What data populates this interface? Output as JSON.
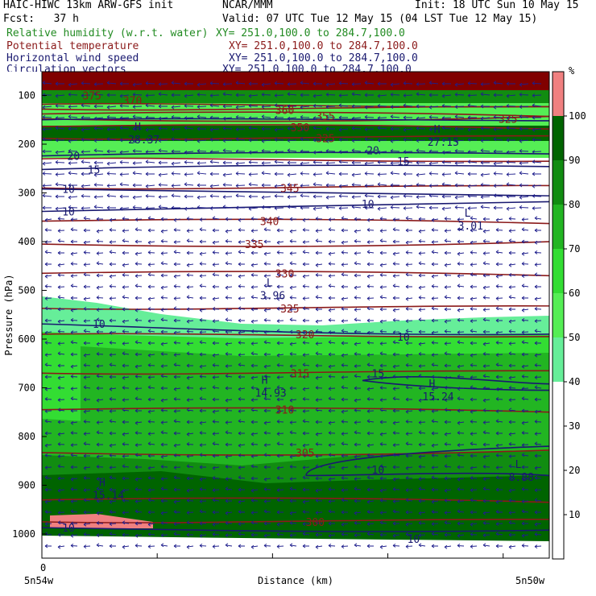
{
  "header": {
    "title_left": "HAIC-HIWC 13km ARW-GFS init",
    "org": "NCAR/MMM",
    "init": "Init: 18 UTC Sun 10 May 15",
    "fcst": "Fcst:   37 h",
    "valid": "Valid: 07 UTC Tue 12 May 15 (04 LST Tue 12 May 15)"
  },
  "fields": [
    {
      "name": "Relative humidity (w.r.t. water)",
      "xy": "XY= 251.0,100.0 to 284.7,100.0",
      "color": "#228b22"
    },
    {
      "name": "Potential temperature",
      "xy": "XY= 251.0,100.0 to 284.7,100.0",
      "color": "#8b1a1a"
    },
    {
      "name": "Horizontal wind speed",
      "xy": "XY= 251.0,100.0 to 284.7,100.0",
      "color": "#191970"
    },
    {
      "name": "Circulation vectors",
      "xy": "XY= 251.0,100.0 to 284.7,100.0",
      "color": "#191970"
    }
  ],
  "colorbar": {
    "unit": "%",
    "ticks": [
      "100",
      "90",
      "80",
      "70",
      "60",
      "50",
      "40",
      "30",
      "20",
      "10"
    ],
    "colors": [
      "#f08080",
      "#006400",
      "#118c11",
      "#22b522",
      "#33dd33",
      "#55ee55",
      "#66ee99",
      "#ffffff",
      "#ffffff",
      "#ffffff",
      "#ffffff"
    ]
  },
  "chart_data": {
    "type": "heatmap",
    "title": "",
    "xlabel": "Distance (km)",
    "ylabel": "Pressure (hPa)",
    "x_ticks": [
      "0"
    ],
    "x_ends": [
      "5n54w",
      "5n50w"
    ],
    "y_ticks": [
      100,
      200,
      300,
      400,
      500,
      600,
      700,
      800,
      900,
      1000
    ],
    "ylim": [
      1050,
      80
    ],
    "theta_labels": [
      {
        "v": "345",
        "p": 290,
        "x": 0.47
      },
      {
        "v": "340",
        "p": 358,
        "x": 0.43
      },
      {
        "v": "335",
        "p": 405,
        "x": 0.4
      },
      {
        "v": "330",
        "p": 465,
        "x": 0.46
      },
      {
        "v": "325",
        "p": 537,
        "x": 0.47
      },
      {
        "v": "320",
        "p": 590,
        "x": 0.5
      },
      {
        "v": "315",
        "p": 670,
        "x": 0.49
      },
      {
        "v": "310",
        "p": 745,
        "x": 0.46
      },
      {
        "v": "305",
        "p": 833,
        "x": 0.5
      },
      {
        "v": "300",
        "p": 975,
        "x": 0.52
      },
      {
        "v": "350",
        "p": 165,
        "x": 0.49
      },
      {
        "v": "325",
        "p": 188,
        "x": 0.54
      },
      {
        "v": "355",
        "p": 142,
        "x": 0.54
      },
      {
        "v": "360",
        "p": 130,
        "x": 0.46
      },
      {
        "v": "370",
        "p": 110,
        "x": 0.16
      },
      {
        "v": "375",
        "p": 100,
        "x": 0.08
      },
      {
        "v": "325",
        "p": 148,
        "x": 0.9
      }
    ],
    "speed_labels": [
      {
        "v": "20",
        "p": 224,
        "x": 0.05
      },
      {
        "v": "15",
        "p": 252,
        "x": 0.09
      },
      {
        "v": "10",
        "p": 292,
        "x": 0.04
      },
      {
        "v": "10",
        "p": 338,
        "x": 0.04
      },
      {
        "v": "10",
        "p": 322,
        "x": 0.63
      },
      {
        "v": "15",
        "p": 235,
        "x": 0.7
      },
      {
        "v": "20",
        "p": 212,
        "x": 0.64
      },
      {
        "v": "10",
        "p": 569,
        "x": 0.1
      },
      {
        "v": "10",
        "p": 595,
        "x": 0.7
      },
      {
        "v": "15",
        "p": 670,
        "x": 0.65
      },
      {
        "v": "10",
        "p": 868,
        "x": 0.65
      },
      {
        "v": "10",
        "p": 987,
        "x": 0.04
      },
      {
        "v": "10",
        "p": 1010,
        "x": 0.72
      }
    ],
    "extrema": [
      {
        "sym": "H",
        "val": "28.37",
        "p": 185,
        "x": 0.17
      },
      {
        "sym": "H",
        "val": "27.15",
        "p": 190,
        "x": 0.76
      },
      {
        "sym": "L",
        "val": "3.01",
        "p": 362,
        "x": 0.82
      },
      {
        "sym": "L",
        "val": "3.96",
        "p": 505,
        "x": 0.43
      },
      {
        "sym": "H",
        "val": "14.93",
        "p": 705,
        "x": 0.42
      },
      {
        "sym": "H",
        "val": "15.24",
        "p": 712,
        "x": 0.75
      },
      {
        "sym": "H",
        "val": "15.14",
        "p": 915,
        "x": 0.1
      },
      {
        "sym": "L",
        "val": "8.88",
        "p": 878,
        "x": 0.92
      }
    ]
  }
}
